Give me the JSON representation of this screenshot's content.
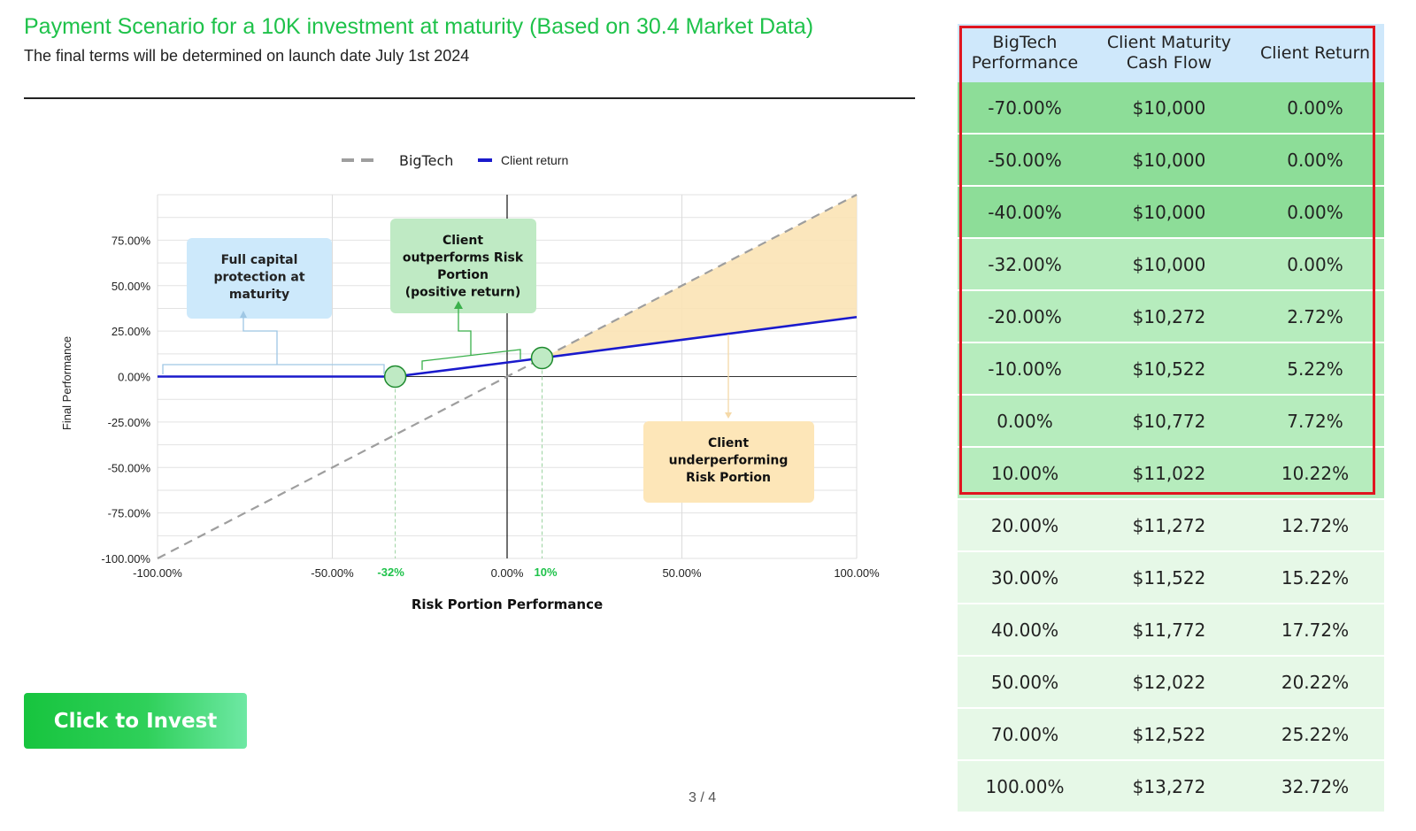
{
  "header": {
    "title": "Payment Scenario for a 10K investment at maturity (Based on 30.4 Market Data)",
    "subtitle": "The final terms will be determined on launch date July 1st 2024"
  },
  "cta": {
    "label": "Click to Invest"
  },
  "pager": {
    "text": "3 / 4"
  },
  "chart_data": {
    "type": "line",
    "xlabel": "Risk Portion Performance",
    "ylabel": "Final Performance",
    "xlim": [
      -100,
      100
    ],
    "ylim": [
      -100,
      100
    ],
    "x_ticks": [
      -100,
      -50,
      0,
      50,
      100
    ],
    "x_tick_labels": [
      "-100.00%",
      "-50.00%",
      "0.00%",
      "50.00%",
      "100.00%"
    ],
    "y_ticks": [
      75,
      50,
      25,
      0,
      -25,
      -50,
      -75,
      -100
    ],
    "y_tick_labels": [
      "75.00%",
      "50.00%",
      "25.00%",
      "0.00%",
      "-25.00%",
      "-50.00%",
      "-75.00%",
      "-100.00%"
    ],
    "highlight_ticks": [
      {
        "x": -32,
        "label": "-32%"
      },
      {
        "x": 10,
        "label": "10%"
      }
    ],
    "legend": {
      "placement": "top-center"
    },
    "series": [
      {
        "name": "BigTech",
        "style": "dashed",
        "color": "#9e9e9e",
        "x": [
          -100,
          100
        ],
        "y": [
          -100,
          100
        ]
      },
      {
        "name": "Client return",
        "style": "solid",
        "color": "#1a1acc",
        "x": [
          -100,
          -32,
          0,
          10,
          100
        ],
        "y": [
          0,
          0,
          7.72,
          10.22,
          32.72
        ]
      }
    ],
    "shaded_region": {
      "x_from": 10,
      "x_to": 100,
      "color": "#fbe3b5"
    },
    "markers": [
      {
        "x": -32,
        "y": 0
      },
      {
        "x": 10,
        "y": 10.22
      }
    ],
    "annotations": [
      {
        "text": "Full capital protection at maturity",
        "color": "#cde9fb"
      },
      {
        "text": "Client outperforms Risk Portion (positive return)",
        "color": "#bfeac4"
      },
      {
        "text": "Client underperforming Risk Portion",
        "color": "#fde6b8"
      }
    ]
  },
  "table": {
    "headers": [
      "BigTech Performance",
      "Client Maturity Cash Flow",
      "Client Return"
    ],
    "rows": [
      [
        "-70.00%",
        "$10,000",
        "0.00%"
      ],
      [
        "-50.00%",
        "$10,000",
        "0.00%"
      ],
      [
        "-40.00%",
        "$10,000",
        "0.00%"
      ],
      [
        "-32.00%",
        "$10,000",
        "0.00%"
      ],
      [
        "-20.00%",
        "$10,272",
        "2.72%"
      ],
      [
        "-10.00%",
        "$10,522",
        "5.22%"
      ],
      [
        "0.00%",
        "$10,772",
        "7.72%"
      ],
      [
        "10.00%",
        "$11,022",
        "10.22%"
      ],
      [
        "20.00%",
        "$11,272",
        "12.72%"
      ],
      [
        "30.00%",
        "$11,522",
        "15.22%"
      ],
      [
        "40.00%",
        "$11,772",
        "17.72%"
      ],
      [
        "50.00%",
        "$12,022",
        "20.22%"
      ],
      [
        "70.00%",
        "$12,522",
        "25.22%"
      ],
      [
        "100.00%",
        "$13,272",
        "32.72%"
      ]
    ],
    "row_colors": [
      "#8ddd98",
      "#8ddd98",
      "#8ddd98",
      "#b6ecbd",
      "#b6ecbd",
      "#b6ecbd",
      "#b6ecbd",
      "#b6ecbd",
      "#e6f8e7",
      "#e6f8e7",
      "#e6f8e7",
      "#e6f8e7",
      "#e6f8e7",
      "#e6f8e7"
    ],
    "highlight_color": "#e0151f"
  }
}
